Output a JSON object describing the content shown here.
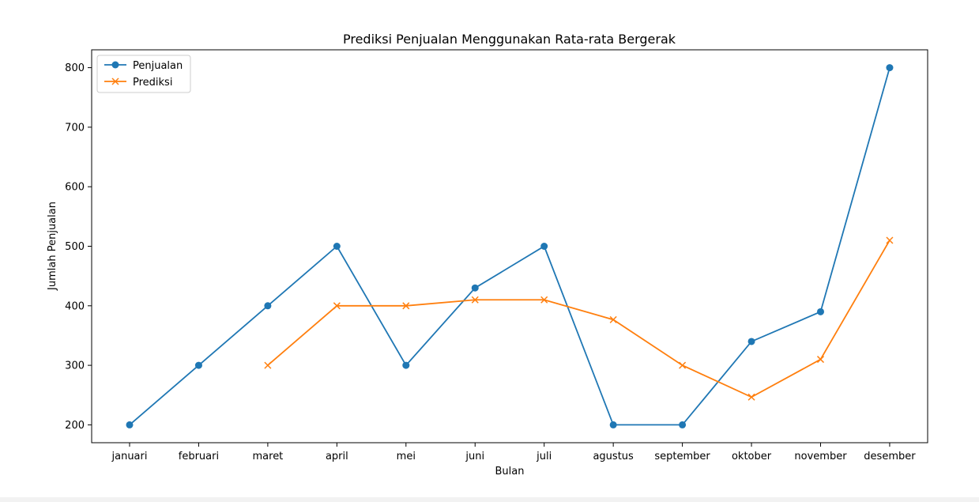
{
  "chart_data": {
    "type": "line",
    "title": "Prediksi Penjualan Menggunakan Rata-rata Bergerak",
    "xlabel": "Bulan",
    "ylabel": "Jumlah Penjualan",
    "categories": [
      "januari",
      "februari",
      "maret",
      "april",
      "mei",
      "juni",
      "juli",
      "agustus",
      "september",
      "oktober",
      "november",
      "desember"
    ],
    "ylim": [
      170,
      830
    ],
    "yticks": [
      200,
      300,
      400,
      500,
      600,
      700,
      800
    ],
    "grid": false,
    "legend_position": "upper-left",
    "series": [
      {
        "name": "Penjualan",
        "marker": "circle",
        "color": "#1f77b4",
        "values": [
          200,
          300,
          400,
          500,
          300,
          430,
          500,
          200,
          200,
          340,
          390,
          800
        ]
      },
      {
        "name": "Prediksi",
        "marker": "x",
        "color": "#ff7f0e",
        "values": [
          null,
          null,
          300,
          400,
          400,
          410,
          410,
          376.67,
          300,
          246.67,
          310,
          510
        ]
      }
    ]
  }
}
